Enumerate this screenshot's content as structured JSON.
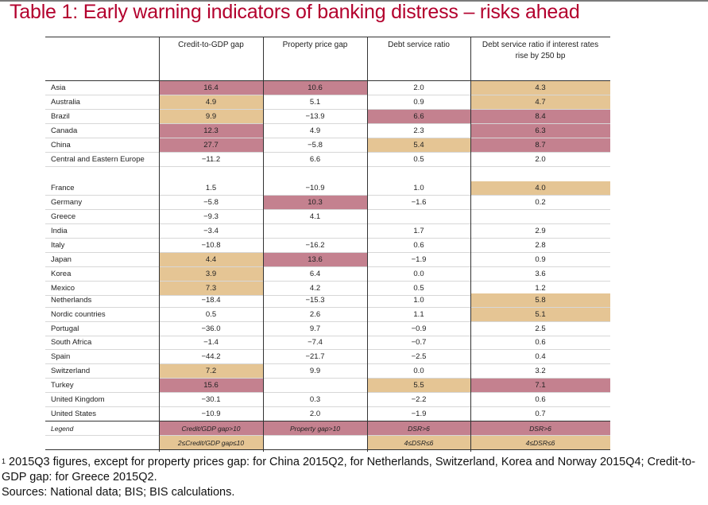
{
  "title": "Table 1: Early warning indicators of banking distress – risks ahead",
  "colors": {
    "title": "#b3002d",
    "high": "#c4818f",
    "medium": "#e5c594"
  },
  "columns": [
    "Credit-to-GDP gap",
    "Property price gap",
    "Debt service ratio",
    "Debt service ratio if interest rates rise by 250 bp"
  ],
  "rows": [
    {
      "name": "Asia",
      "values": [
        "16.4",
        "10.6",
        "2.0",
        "4.3"
      ],
      "flags": [
        "high",
        "high",
        "",
        "medium"
      ]
    },
    {
      "name": "Australia",
      "values": [
        "4.9",
        "5.1",
        "0.9",
        "4.7"
      ],
      "flags": [
        "medium",
        "",
        "",
        "medium"
      ]
    },
    {
      "name": "Brazil",
      "values": [
        "9.9",
        "−13.9",
        "6.6",
        "8.4"
      ],
      "flags": [
        "medium",
        "",
        "high",
        "high"
      ]
    },
    {
      "name": "Canada",
      "values": [
        "12.3",
        "4.9",
        "2.3",
        "6.3"
      ],
      "flags": [
        "high",
        "",
        "",
        "high"
      ]
    },
    {
      "name": "China",
      "values": [
        "27.7",
        "−5.8",
        "5.4",
        "8.7"
      ],
      "flags": [
        "high",
        "",
        "medium",
        "high"
      ]
    },
    {
      "name": "Central and Eastern Europe",
      "values": [
        "−11.2",
        "6.6",
        "0.5",
        "2.0"
      ],
      "flags": [
        "",
        "",
        "",
        ""
      ]
    },
    {
      "name": "France",
      "values": [
        "1.5",
        "−10.9",
        "1.0",
        "4.0"
      ],
      "flags": [
        "",
        "",
        "",
        "medium"
      ]
    },
    {
      "name": "Germany",
      "values": [
        "−5.8",
        "10.3",
        "−1.6",
        "0.2"
      ],
      "flags": [
        "",
        "high",
        "",
        ""
      ]
    },
    {
      "name": "Greece",
      "values": [
        "−9.3",
        "4.1",
        "",
        ""
      ],
      "flags": [
        "",
        "",
        "",
        ""
      ]
    },
    {
      "name": "India",
      "values": [
        "−3.4",
        "",
        "1.7",
        "2.9"
      ],
      "flags": [
        "",
        "",
        "",
        ""
      ]
    },
    {
      "name": "Italy",
      "values": [
        "−10.8",
        "−16.2",
        "0.6",
        "2.8"
      ],
      "flags": [
        "",
        "",
        "",
        ""
      ]
    },
    {
      "name": "Japan",
      "values": [
        "4.4",
        "13.6",
        "−1.9",
        "0.9"
      ],
      "flags": [
        "medium",
        "high",
        "",
        ""
      ]
    },
    {
      "name": "Korea",
      "values": [
        "3.9",
        "6.4",
        "0.0",
        "3.6"
      ],
      "flags": [
        "medium",
        "",
        "",
        ""
      ]
    },
    {
      "name": "Mexico",
      "values": [
        "7.3",
        "4.2",
        "0.5",
        "1.2"
      ],
      "flags": [
        "medium",
        "",
        "",
        ""
      ]
    },
    {
      "name": "Netherlands",
      "values": [
        "−18.4",
        "−15.3",
        "1.0",
        "5.8"
      ],
      "flags": [
        "",
        "",
        "",
        "medium"
      ]
    },
    {
      "name": "Nordic countries",
      "values": [
        "0.5",
        "2.6",
        "1.1",
        "5.1"
      ],
      "flags": [
        "",
        "",
        "",
        "medium"
      ]
    },
    {
      "name": "Portugal",
      "values": [
        "−36.0",
        "9.7",
        "−0.9",
        "2.5"
      ],
      "flags": [
        "",
        "",
        "",
        ""
      ]
    },
    {
      "name": "South Africa",
      "values": [
        "−1.4",
        "−7.4",
        "−0.7",
        "0.6"
      ],
      "flags": [
        "",
        "",
        "",
        ""
      ]
    },
    {
      "name": "Spain",
      "values": [
        "−44.2",
        "−21.7",
        "−2.5",
        "0.4"
      ],
      "flags": [
        "",
        "",
        "",
        ""
      ]
    },
    {
      "name": "Switzerland",
      "values": [
        "7.2",
        "9.9",
        "0.0",
        "3.2"
      ],
      "flags": [
        "medium",
        "",
        "",
        ""
      ]
    },
    {
      "name": "Turkey",
      "values": [
        "15.6",
        "",
        "5.5",
        "7.1"
      ],
      "flags": [
        "high",
        "",
        "medium",
        "high"
      ]
    },
    {
      "name": "United Kingdom",
      "values": [
        "−30.1",
        "0.3",
        "−2.2",
        "0.6"
      ],
      "flags": [
        "",
        "",
        "",
        ""
      ]
    },
    {
      "name": "United States",
      "values": [
        "−10.9",
        "2.0",
        "−1.9",
        "0.7"
      ],
      "flags": [
        "",
        "",
        "",
        ""
      ]
    }
  ],
  "legend": {
    "label": "Legend",
    "high": [
      "Credit/GDP gap>10",
      "Property gap>10",
      "DSR>6",
      "DSR>6"
    ],
    "medium": [
      "2≤Credit/GDP gap≤10",
      "",
      "4≤DSR≤6",
      "4≤DSR≤6"
    ]
  },
  "footnote": {
    "marker": "1",
    "line1": "2015Q3 figures, except for property prices gap: for China 2015Q2, for Netherlands, Switzerland, Korea and Norway 2015Q4; Credit-to-GDP gap: for Greece 2015Q2.",
    "sources": "Sources: National data; BIS; BIS calculations."
  }
}
